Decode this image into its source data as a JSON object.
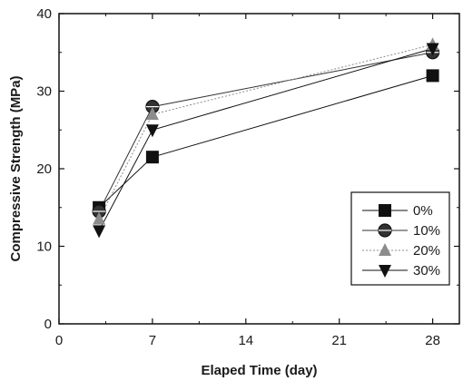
{
  "chart_data": {
    "type": "line",
    "title": "",
    "xlabel": "Elaped Time (day)",
    "ylabel": "Compressive Strength (MPa)",
    "xlim": [
      0,
      30
    ],
    "ylim": [
      0,
      40
    ],
    "xticks": [
      0,
      7,
      14,
      21,
      28
    ],
    "yticks": [
      0,
      10,
      20,
      30,
      40
    ],
    "grid": false,
    "legend_position": "bottom-right",
    "x": [
      3,
      7,
      28
    ],
    "series": [
      {
        "name": "0%",
        "marker": "square",
        "color": "#111111",
        "dash": "solid",
        "values": [
          15.0,
          21.5,
          32.0
        ]
      },
      {
        "name": "10%",
        "marker": "circle",
        "color": "#333333",
        "dash": "solid",
        "values": [
          14.5,
          28.0,
          35.0
        ]
      },
      {
        "name": "20%",
        "marker": "triangle-up",
        "color": "#8c8c8c",
        "dash": "dotted",
        "values": [
          13.5,
          27.0,
          36.0
        ]
      },
      {
        "name": "30%",
        "marker": "triangle-down",
        "color": "#111111",
        "dash": "solid",
        "values": [
          12.0,
          25.0,
          35.5
        ]
      }
    ]
  }
}
